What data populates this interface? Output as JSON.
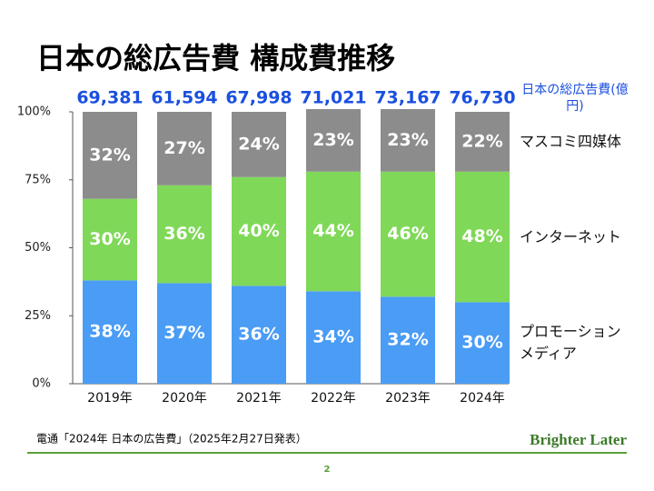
{
  "chart_data": {
    "type": "stacked_bar",
    "title": "日本の総広告費 構成費推移",
    "categories": [
      "2019年",
      "2020年",
      "2021年",
      "2022年",
      "2023年",
      "2024年"
    ],
    "series": [
      {
        "name": "プロモーションメディア",
        "color": "#4a9cf5",
        "values": [
          38,
          37,
          36,
          34,
          32,
          30
        ],
        "value_labels": [
          "38%",
          "37%",
          "36%",
          "34%",
          "32%",
          "30%"
        ]
      },
      {
        "name": "インターネット",
        "color": "#80d858",
        "values": [
          30,
          36,
          40,
          44,
          46,
          48
        ],
        "value_labels": [
          "30%",
          "36%",
          "40%",
          "44%",
          "46%",
          "48%"
        ]
      },
      {
        "name": "マスコミ四媒体",
        "color": "#8c8c8c",
        "values": [
          32,
          27,
          24,
          23,
          23,
          22
        ],
        "value_labels": [
          "32%",
          "27%",
          "24%",
          "23%",
          "23%",
          "22%"
        ]
      }
    ],
    "totals": {
      "name": "日本の総広告費(億円)",
      "values": [
        69381,
        61594,
        67998,
        71021,
        73167,
        76730
      ],
      "value_labels": [
        "69,381",
        "61,594",
        "67,998",
        "71,021",
        "73,167",
        "76,730"
      ]
    },
    "ylim": [
      0,
      100
    ],
    "yticks": [
      {
        "value": 0,
        "label": "0%"
      },
      {
        "value": 25,
        "label": "25%"
      },
      {
        "value": 50,
        "label": "50%"
      },
      {
        "value": 75,
        "label": "75%"
      },
      {
        "value": 100,
        "label": "100%"
      }
    ],
    "grid": false,
    "source": "電通「2024年 日本の広告費」（2025年2月27日発表）",
    "brand": "Brighter Later",
    "page_number": "2"
  }
}
